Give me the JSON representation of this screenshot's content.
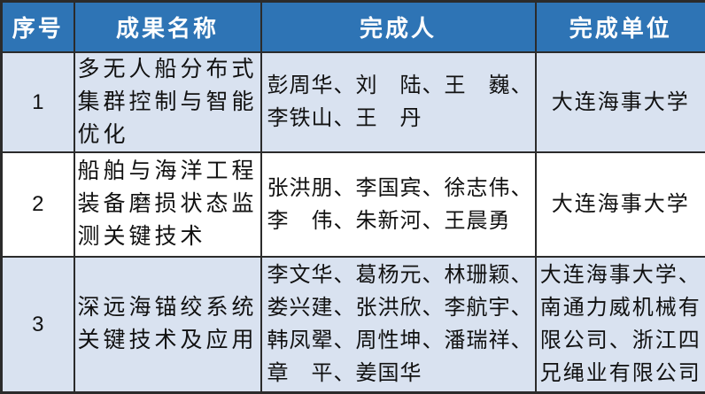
{
  "table": {
    "headers": [
      "序号",
      "成果名称",
      "完成人",
      "完成单位"
    ],
    "rows": [
      {
        "serial": "1",
        "achievement": "多无人船分布式\n集群控制与智能\n优化",
        "contributors": "彭周华、刘　陆、王　巍、\n李铁山、王　丹",
        "organizations": "大连海事大学"
      },
      {
        "serial": "2",
        "achievement": "船舶与海洋工程\n装备磨损状态监\n测关键技术",
        "contributors": "张洪朋、李国宾、徐志伟、\n李　伟、朱新河、王晨勇",
        "organizations": "大连海事大学"
      },
      {
        "serial": "3",
        "achievement": "深远海锚绞系统\n关键技术及应用",
        "contributors": "李文华、葛杨元、林珊颖、\n娄兴建、张洪欣、李航宇、\n韩凤翚、周性坤、潘瑞祥、\n章　平、姜国华",
        "organizations": "大连海事大学、\n南通力威机械有\n限公司、浙江四\n兄绳业有限公司"
      }
    ]
  },
  "colors": {
    "header_bg": "#2E74B5",
    "header_text": "#FFFFFF",
    "row_alt_bg": "#D9E2F0",
    "row_bg": "#FFFFFF",
    "border": "#2B2B2B",
    "body_text": "#111111"
  }
}
